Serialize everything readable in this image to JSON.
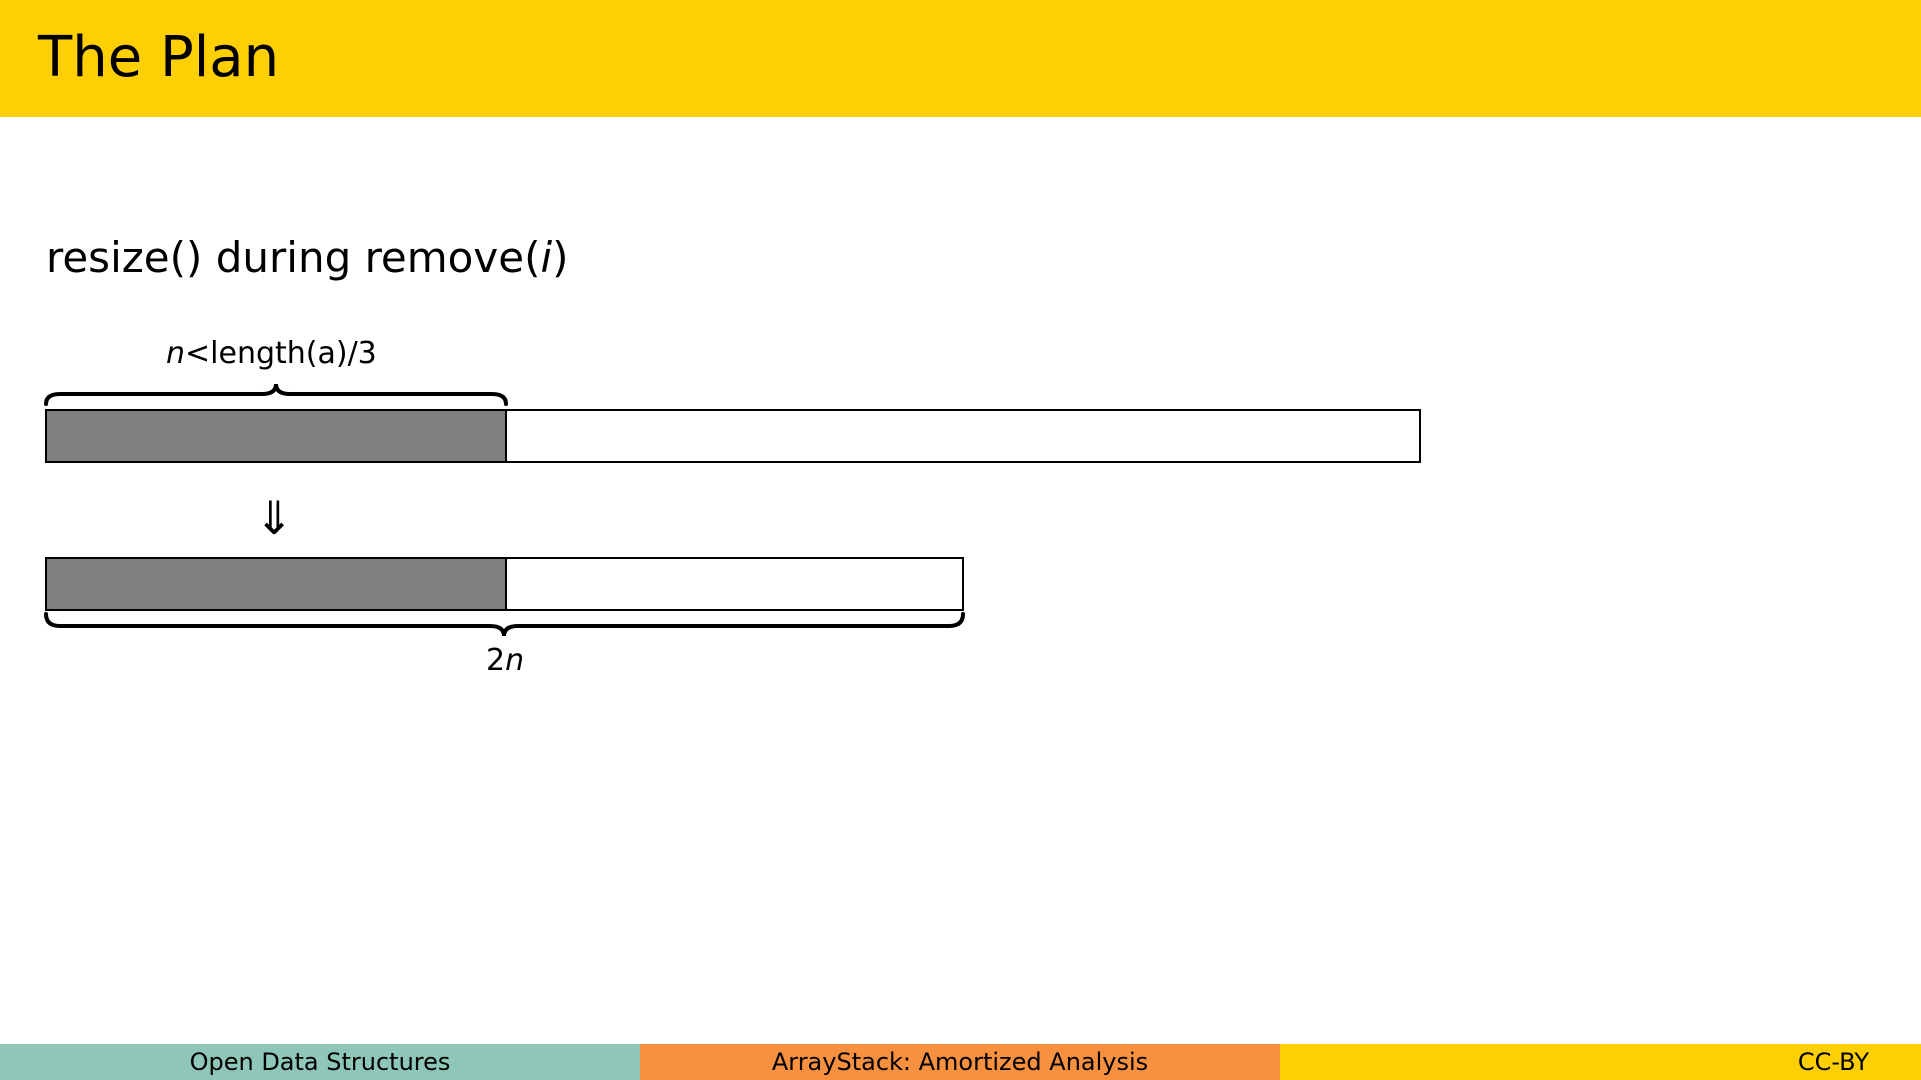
{
  "header": {
    "title": "The Plan"
  },
  "slide": {
    "subtitle_prefix": "resize() during remove(",
    "subtitle_var": "i",
    "subtitle_suffix": ")",
    "top_label_var": "n",
    "top_label_rest": "<length(a)/3",
    "bottom_label_num": "2",
    "bottom_label_var": "n",
    "arrow_symbol": "⇓"
  },
  "colors": {
    "header_bg": "#FFCF06",
    "filled_cell": "#808080",
    "footer_left": "#8EC6B7",
    "footer_mid": "#F7903F",
    "footer_right": "#FFCF06"
  },
  "footer": {
    "left": "Open Data Structures",
    "middle": "ArrayStack: Amortized Analysis",
    "right": "CC-BY"
  }
}
